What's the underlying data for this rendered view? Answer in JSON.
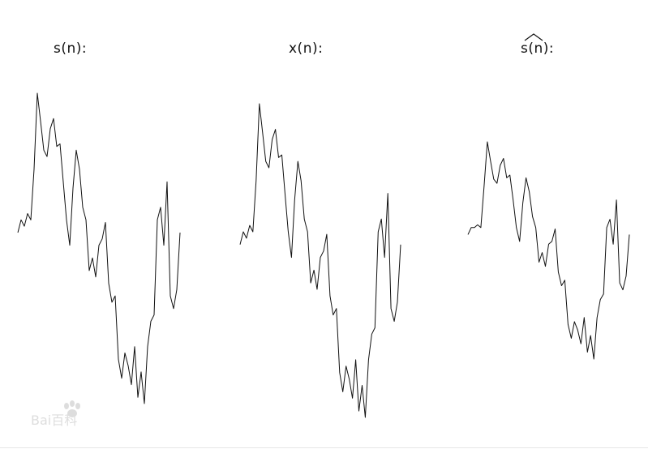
{
  "page": {
    "background": "#ffffff",
    "line_color": "#111111"
  },
  "watermark": {
    "text": "Bai百科"
  },
  "chart_data": [
    {
      "type": "line",
      "title": "s(n):",
      "x": [
        0,
        1,
        2,
        3,
        4,
        5,
        6,
        7,
        8,
        9,
        10,
        11,
        12,
        13,
        14,
        15,
        16,
        17,
        18,
        19,
        20,
        21,
        22,
        23,
        24,
        25,
        26,
        27,
        28,
        29,
        30,
        31,
        32,
        33,
        34,
        35,
        36,
        37,
        38,
        39,
        40,
        41,
        42,
        43,
        44,
        45,
        46,
        47,
        48,
        49,
        50
      ],
      "values": [
        -0.1,
        0.0,
        -0.05,
        0.05,
        0.0,
        0.4,
        1.0,
        0.78,
        0.55,
        0.5,
        0.72,
        0.8,
        0.58,
        0.6,
        0.3,
        0.0,
        -0.2,
        0.25,
        0.55,
        0.4,
        0.1,
        0.0,
        -0.4,
        -0.3,
        -0.45,
        -0.2,
        -0.15,
        -0.02,
        -0.5,
        -0.65,
        -0.6,
        -1.1,
        -1.25,
        -1.05,
        -1.15,
        -1.3,
        -1.0,
        -1.4,
        -1.2,
        -1.45,
        -1.0,
        -0.8,
        -0.75,
        0.0,
        0.1,
        -0.2,
        0.3,
        -0.6,
        -0.7,
        -0.55,
        -0.1
      ],
      "xlabel": "",
      "ylabel": "",
      "grid": false,
      "legend": "none"
    },
    {
      "type": "line",
      "title": "x(n):",
      "x": [
        0,
        1,
        2,
        3,
        4,
        5,
        6,
        7,
        8,
        9,
        10,
        11,
        12,
        13,
        14,
        15,
        16,
        17,
        18,
        19,
        20,
        21,
        22,
        23,
        24,
        25,
        26,
        27,
        28,
        29,
        30,
        31,
        32,
        33,
        34,
        35,
        36,
        37,
        38,
        39,
        40,
        41,
        42,
        43,
        44,
        45,
        46,
        47,
        48,
        49,
        50
      ],
      "values": [
        -0.1,
        0.0,
        -0.05,
        0.05,
        0.0,
        0.4,
        1.0,
        0.78,
        0.55,
        0.5,
        0.72,
        0.8,
        0.58,
        0.6,
        0.3,
        0.0,
        -0.2,
        0.25,
        0.55,
        0.4,
        0.1,
        0.0,
        -0.4,
        -0.3,
        -0.45,
        -0.2,
        -0.15,
        -0.02,
        -0.5,
        -0.65,
        -0.6,
        -1.1,
        -1.25,
        -1.05,
        -1.15,
        -1.3,
        -1.0,
        -1.4,
        -1.2,
        -1.45,
        -1.0,
        -0.8,
        -0.75,
        0.0,
        0.1,
        -0.2,
        0.3,
        -0.6,
        -0.7,
        -0.55,
        -0.1
      ],
      "xlabel": "",
      "ylabel": "",
      "grid": false,
      "legend": "none"
    },
    {
      "type": "line",
      "title": "s(n):",
      "title_accent": "hat",
      "x": [
        0,
        1,
        2,
        3,
        4,
        5,
        6,
        7,
        8,
        9,
        10,
        11,
        12,
        13,
        14,
        15,
        16,
        17,
        18,
        19,
        20,
        21,
        22,
        23,
        24,
        25,
        26,
        27,
        28,
        29,
        30,
        31,
        32,
        33,
        34,
        35,
        36,
        37,
        38,
        39,
        40,
        41,
        42,
        43,
        44,
        45,
        46,
        47,
        48,
        49,
        50
      ],
      "values": [
        -0.05,
        0.0,
        0.0,
        0.02,
        0.0,
        0.3,
        0.62,
        0.48,
        0.35,
        0.32,
        0.45,
        0.5,
        0.36,
        0.38,
        0.2,
        0.0,
        -0.1,
        0.18,
        0.36,
        0.26,
        0.08,
        0.0,
        -0.25,
        -0.18,
        -0.28,
        -0.12,
        -0.1,
        -0.01,
        -0.32,
        -0.42,
        -0.38,
        -0.7,
        -0.8,
        -0.68,
        -0.74,
        -0.84,
        -0.65,
        -0.9,
        -0.78,
        -0.95,
        -0.65,
        -0.52,
        -0.48,
        0.0,
        0.06,
        -0.12,
        0.2,
        -0.4,
        -0.45,
        -0.35,
        -0.05
      ],
      "xlabel": "",
      "ylabel": "",
      "grid": false,
      "legend": "none"
    }
  ]
}
